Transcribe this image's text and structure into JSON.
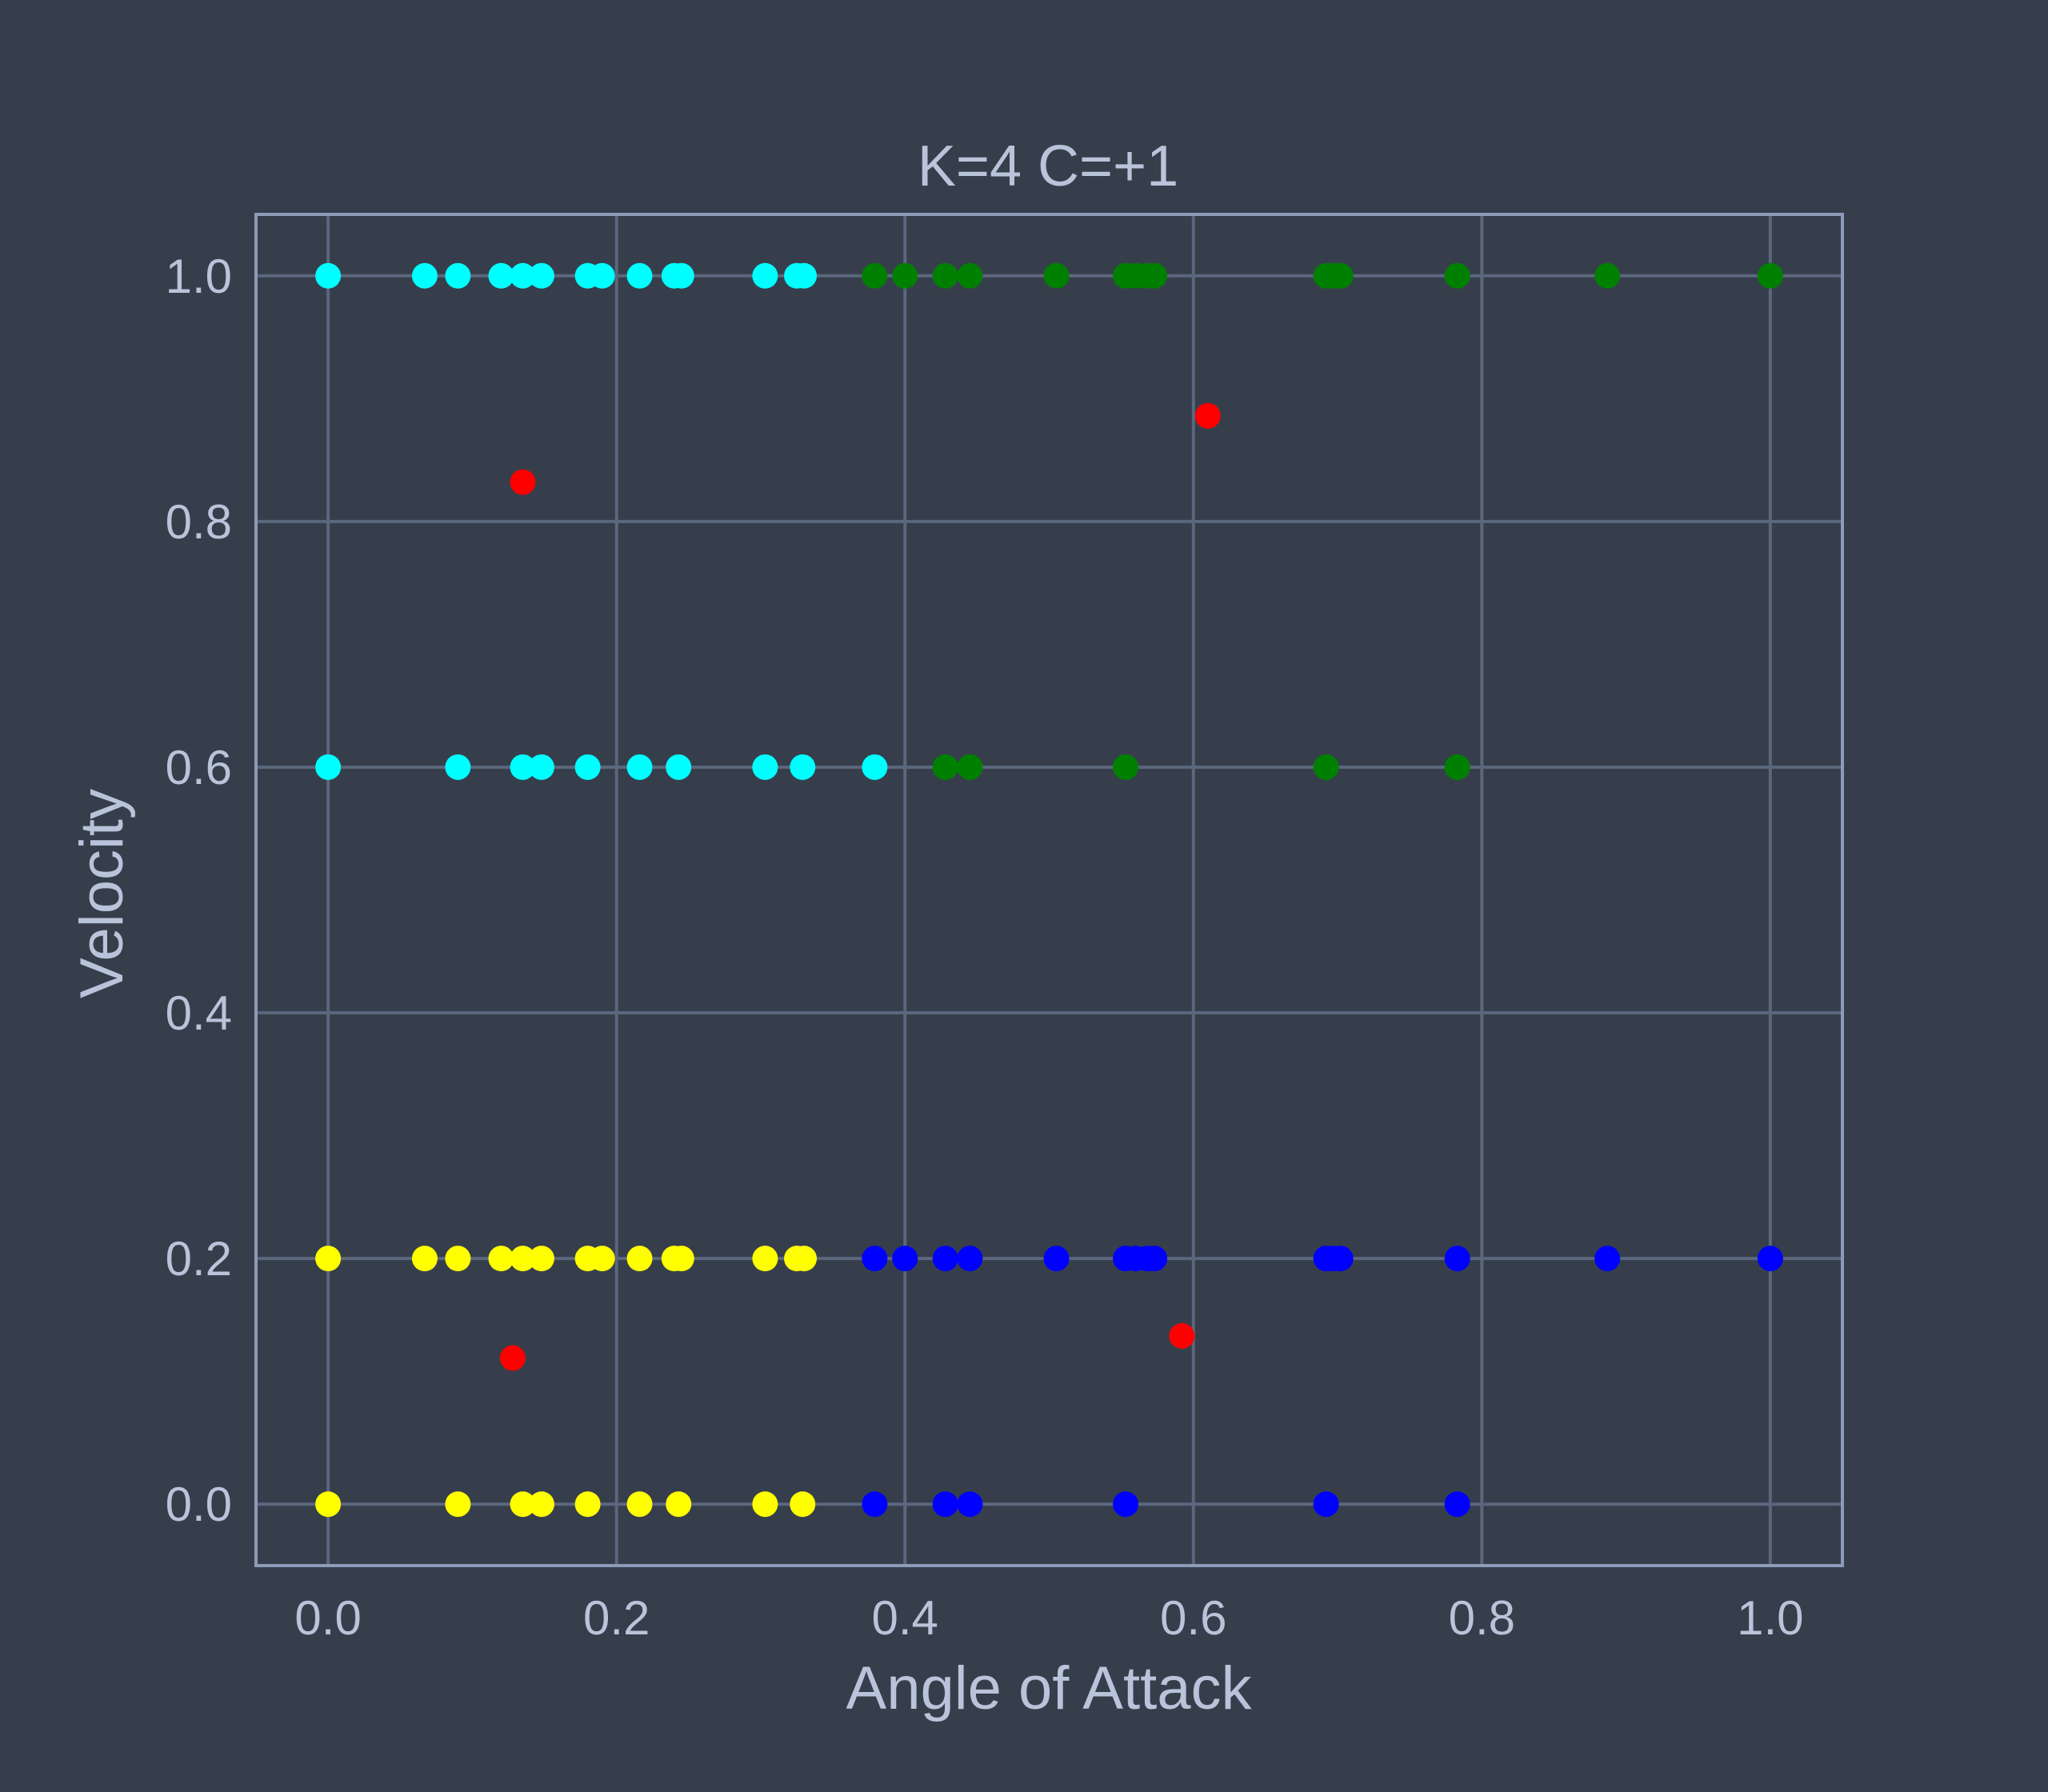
{
  "chart_data": {
    "type": "scatter",
    "title": "K=4 C=+1",
    "xlabel": "Angle of Attack",
    "ylabel": "Velocity",
    "xlim": [
      -0.05,
      1.05
    ],
    "ylim": [
      -0.05,
      1.05
    ],
    "xticks": [
      "0.0",
      "0.2",
      "0.4",
      "0.6",
      "0.8",
      "1.0"
    ],
    "yticks": [
      "0.0",
      "0.2",
      "0.4",
      "0.6",
      "0.8",
      "1.0"
    ],
    "grid": true,
    "legend": "none",
    "colors": {
      "background": "#363e4c",
      "grid": "#5b677c",
      "spine": "#8e9bb8",
      "text": "#b9c3d9",
      "cyan": "#00ffff",
      "green": "#008000",
      "yellow": "#ffff00",
      "blue": "#0000ff",
      "red": "#ff0000"
    },
    "series": [
      {
        "color": "cyan",
        "points": [
          [
            0.0,
            1.0
          ],
          [
            0.067,
            1.0
          ],
          [
            0.09,
            1.0
          ],
          [
            0.12,
            1.0
          ],
          [
            0.135,
            1.0
          ],
          [
            0.148,
            1.0
          ],
          [
            0.18,
            1.0
          ],
          [
            0.19,
            1.0
          ],
          [
            0.216,
            1.0
          ],
          [
            0.24,
            1.0
          ],
          [
            0.245,
            1.0
          ],
          [
            0.303,
            1.0
          ],
          [
            0.325,
            1.0
          ],
          [
            0.33,
            1.0
          ],
          [
            0.0,
            0.6
          ],
          [
            0.09,
            0.6
          ],
          [
            0.135,
            0.6
          ],
          [
            0.148,
            0.6
          ],
          [
            0.18,
            0.6
          ],
          [
            0.216,
            0.6
          ],
          [
            0.243,
            0.6
          ],
          [
            0.303,
            0.6
          ],
          [
            0.329,
            0.6
          ],
          [
            0.379,
            0.6
          ]
        ]
      },
      {
        "color": "green",
        "points": [
          [
            0.379,
            1.0
          ],
          [
            0.4,
            1.0
          ],
          [
            0.428,
            1.0
          ],
          [
            0.445,
            1.0
          ],
          [
            0.505,
            1.0
          ],
          [
            0.553,
            1.0
          ],
          [
            0.56,
            1.0
          ],
          [
            0.568,
            1.0
          ],
          [
            0.573,
            1.0
          ],
          [
            0.692,
            1.0
          ],
          [
            0.697,
            1.0
          ],
          [
            0.702,
            1.0
          ],
          [
            0.783,
            1.0
          ],
          [
            0.887,
            1.0
          ],
          [
            1.0,
            1.0
          ],
          [
            0.428,
            0.6
          ],
          [
            0.445,
            0.6
          ],
          [
            0.553,
            0.6
          ],
          [
            0.692,
            0.6
          ],
          [
            0.783,
            0.6
          ]
        ]
      },
      {
        "color": "yellow",
        "points": [
          [
            0.0,
            0.2
          ],
          [
            0.067,
            0.2
          ],
          [
            0.09,
            0.2
          ],
          [
            0.12,
            0.2
          ],
          [
            0.135,
            0.2
          ],
          [
            0.148,
            0.2
          ],
          [
            0.18,
            0.2
          ],
          [
            0.19,
            0.2
          ],
          [
            0.216,
            0.2
          ],
          [
            0.24,
            0.2
          ],
          [
            0.245,
            0.2
          ],
          [
            0.303,
            0.2
          ],
          [
            0.325,
            0.2
          ],
          [
            0.33,
            0.2
          ],
          [
            0.0,
            0.0
          ],
          [
            0.09,
            0.0
          ],
          [
            0.135,
            0.0
          ],
          [
            0.148,
            0.0
          ],
          [
            0.18,
            0.0
          ],
          [
            0.216,
            0.0
          ],
          [
            0.243,
            0.0
          ],
          [
            0.303,
            0.0
          ],
          [
            0.329,
            0.0
          ]
        ]
      },
      {
        "color": "blue",
        "points": [
          [
            0.379,
            0.2
          ],
          [
            0.4,
            0.2
          ],
          [
            0.428,
            0.2
          ],
          [
            0.445,
            0.2
          ],
          [
            0.505,
            0.2
          ],
          [
            0.553,
            0.2
          ],
          [
            0.56,
            0.2
          ],
          [
            0.568,
            0.2
          ],
          [
            0.573,
            0.2
          ],
          [
            0.692,
            0.2
          ],
          [
            0.697,
            0.2
          ],
          [
            0.702,
            0.2
          ],
          [
            0.783,
            0.2
          ],
          [
            0.887,
            0.2
          ],
          [
            1.0,
            0.2
          ],
          [
            0.379,
            0.0
          ],
          [
            0.428,
            0.0
          ],
          [
            0.445,
            0.0
          ],
          [
            0.553,
            0.0
          ],
          [
            0.692,
            0.0
          ],
          [
            0.783,
            0.0
          ]
        ]
      },
      {
        "color": "red",
        "points": [
          [
            0.135,
            0.832
          ],
          [
            0.61,
            0.886
          ],
          [
            0.128,
            0.119
          ],
          [
            0.592,
            0.137
          ]
        ]
      }
    ]
  }
}
